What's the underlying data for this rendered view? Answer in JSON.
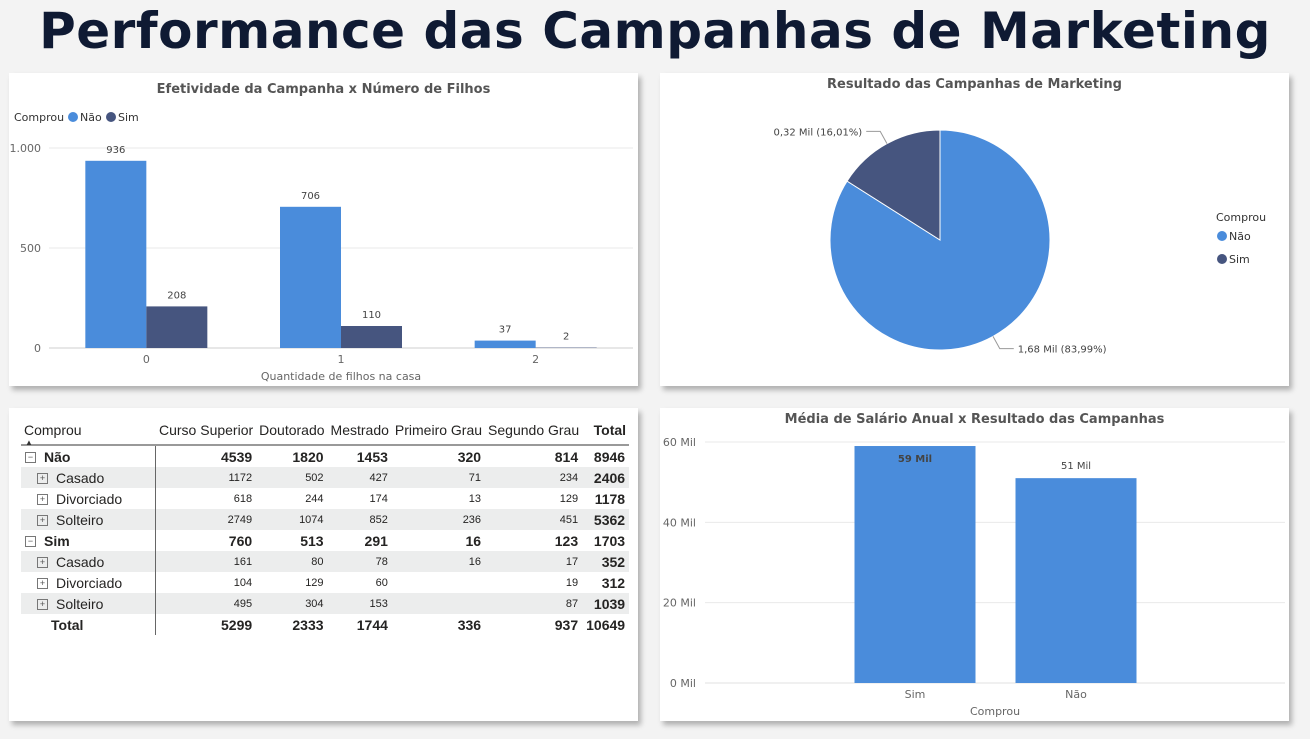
{
  "page_title": "Performance das Campanhas de Marketing",
  "colors": {
    "nao": "#4a8cdb",
    "sim": "#46557f"
  },
  "chart_data": [
    {
      "type": "bar",
      "title": "Efetividade da Campanha x Número de Filhos",
      "legend_title": "Comprou",
      "categories": [
        "0",
        "1",
        "2"
      ],
      "series": [
        {
          "name": "Não",
          "values": [
            936,
            706,
            37
          ]
        },
        {
          "name": "Sim",
          "values": [
            208,
            110,
            2
          ]
        }
      ],
      "xlabel": "Quantidade de filhos na casa",
      "ylabel": "",
      "ylim": [
        0,
        1000
      ],
      "yticks": [
        {
          "v": 0,
          "label": "0"
        },
        {
          "v": 500,
          "label": "500"
        },
        {
          "v": 1000,
          "label": "1.000"
        }
      ],
      "legend_position": "top-left"
    },
    {
      "type": "pie",
      "title": "Resultado das Campanhas de Marketing",
      "legend_title": "Comprou",
      "slices": [
        {
          "name": "Não",
          "value": 1.68,
          "label": "1,68 Mil (83,99%)",
          "percent": 83.99
        },
        {
          "name": "Sim",
          "value": 0.32,
          "label": "0,32 Mil (16,01%)",
          "percent": 16.01
        }
      ],
      "legend_position": "right"
    },
    {
      "type": "table",
      "corner_label": "Comprou",
      "columns": [
        "Curso Superior",
        "Doutorado",
        "Mestrado",
        "Primeiro Grau",
        "Segundo Grau",
        "Total"
      ],
      "groups": [
        {
          "label": "Não",
          "values": [
            "4539",
            "1820",
            "1453",
            "320",
            "814",
            "8946"
          ],
          "rows": [
            {
              "label": "Casado",
              "values": [
                "1172",
                "502",
                "427",
                "71",
                "234",
                "2406"
              ]
            },
            {
              "label": "Divorciado",
              "values": [
                "618",
                "244",
                "174",
                "13",
                "129",
                "1178"
              ]
            },
            {
              "label": "Solteiro",
              "values": [
                "2749",
                "1074",
                "852",
                "236",
                "451",
                "5362"
              ]
            }
          ]
        },
        {
          "label": "Sim",
          "values": [
            "760",
            "513",
            "291",
            "16",
            "123",
            "1703"
          ],
          "rows": [
            {
              "label": "Casado",
              "values": [
                "161",
                "80",
                "78",
                "16",
                "17",
                "352"
              ]
            },
            {
              "label": "Divorciado",
              "values": [
                "104",
                "129",
                "60",
                "",
                "19",
                "312"
              ]
            },
            {
              "label": "Solteiro",
              "values": [
                "495",
                "304",
                "153",
                "",
                "87",
                "1039"
              ]
            }
          ]
        }
      ],
      "total": {
        "label": "Total",
        "values": [
          "5299",
          "2333",
          "1744",
          "336",
          "937",
          "10649"
        ]
      }
    },
    {
      "type": "bar",
      "title": "Média de Salário Anual x Resultado das Campanhas",
      "categories": [
        "Sim",
        "Não"
      ],
      "values": [
        59,
        51
      ],
      "value_labels": [
        "59 Mil",
        "51 Mil"
      ],
      "xlabel": "Comprou",
      "ylabel": "",
      "ylim": [
        0,
        60
      ],
      "yticks": [
        {
          "v": 0,
          "label": "0 Mil"
        },
        {
          "v": 20,
          "label": "20 Mil"
        },
        {
          "v": 40,
          "label": "40 Mil"
        },
        {
          "v": 60,
          "label": "60 Mil"
        }
      ]
    }
  ]
}
